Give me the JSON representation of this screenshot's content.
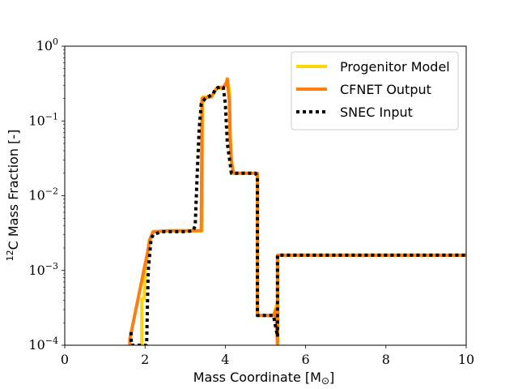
{
  "chart_data": {
    "type": "line",
    "title": "",
    "xlabel": "Mass Coordinate [M",
    "xlabel_symbol": "⊙",
    "xlabel_close": "]",
    "ylabel_sup": "12",
    "ylabel": "C Mass Fraction [-]",
    "xlim": [
      0,
      10
    ],
    "ylim": [
      0.0001,
      1
    ],
    "yscale": "log",
    "x_ticks": [
      0,
      2,
      4,
      6,
      8,
      10
    ],
    "x_tick_labels": [
      "0",
      "2",
      "4",
      "6",
      "8",
      "10"
    ],
    "y_ticks": [
      -4,
      -3,
      -2,
      -1,
      0
    ],
    "y_tick_labels": [
      "4",
      "3",
      "2",
      "1",
      "0"
    ],
    "y_tick_base": "10",
    "y_tick_minus": "−",
    "legend_position": "top-right",
    "series": [
      {
        "name": "Progenitor Model",
        "color": "#ffd700",
        "style": "solid",
        "points": [
          [
            1.92,
            0.0001
          ],
          [
            1.92,
            0.00042
          ],
          [
            1.98,
            0.00042
          ],
          [
            2.0,
            0.001
          ],
          [
            2.05,
            0.0015
          ],
          [
            2.1,
            0.0025
          ],
          [
            2.2,
            0.0033
          ],
          [
            2.6,
            0.0034
          ],
          [
            3.1,
            0.0034
          ],
          [
            3.42,
            0.0034
          ],
          [
            3.44,
            0.21
          ],
          [
            3.65,
            0.21
          ],
          [
            3.8,
            0.28
          ],
          [
            3.92,
            0.27
          ],
          [
            4.0,
            0.3
          ],
          [
            4.05,
            0.37
          ],
          [
            4.1,
            0.25
          ],
          [
            4.12,
            0.07
          ],
          [
            4.15,
            0.03
          ],
          [
            4.2,
            0.02
          ],
          [
            4.8,
            0.02
          ],
          [
            4.8,
            0.00025
          ],
          [
            5.2,
            0.00025
          ],
          [
            5.28,
            0.00035
          ],
          [
            5.3,
            0.0001
          ],
          [
            5.3,
            0.0016
          ],
          [
            10,
            0.0016
          ]
        ]
      },
      {
        "name": "CFNET Output",
        "color": "#ff7f0e",
        "style": "solid",
        "points": [
          [
            1.62,
            0.0001
          ],
          [
            1.62,
            0.00012
          ],
          [
            2.0,
            0.0012
          ],
          [
            2.05,
            0.0016
          ],
          [
            2.12,
            0.0026
          ],
          [
            2.2,
            0.0033
          ],
          [
            2.6,
            0.0034
          ],
          [
            3.1,
            0.0034
          ],
          [
            3.4,
            0.0034
          ],
          [
            3.42,
            0.2
          ],
          [
            3.65,
            0.21
          ],
          [
            3.8,
            0.28
          ],
          [
            3.95,
            0.28
          ],
          [
            4.02,
            0.32
          ],
          [
            4.05,
            0.36
          ],
          [
            4.1,
            0.18
          ],
          [
            4.12,
            0.06
          ],
          [
            4.15,
            0.03
          ],
          [
            4.2,
            0.02
          ],
          [
            4.8,
            0.02
          ],
          [
            4.8,
            0.00025
          ],
          [
            5.2,
            0.00025
          ],
          [
            5.26,
            0.0003
          ],
          [
            5.3,
            0.0001
          ],
          [
            5.3,
            0.0016
          ],
          [
            10,
            0.0016
          ]
        ]
      },
      {
        "name": "SNEC Input",
        "color": "#000000",
        "style": "dotted",
        "points": [
          [
            1.65,
            0.00015
          ],
          [
            1.66,
            0.0001
          ],
          [
            2.04,
            0.0001
          ],
          [
            2.06,
            0.00035
          ],
          [
            2.08,
            0.001
          ],
          [
            2.15,
            0.0026
          ],
          [
            2.2,
            0.003
          ],
          [
            2.4,
            0.0033
          ],
          [
            3.0,
            0.0033
          ],
          [
            3.2,
            0.0034
          ],
          [
            3.25,
            0.004
          ],
          [
            3.3,
            0.02
          ],
          [
            3.35,
            0.08
          ],
          [
            3.4,
            0.17
          ],
          [
            3.5,
            0.2
          ],
          [
            3.7,
            0.23
          ],
          [
            3.75,
            0.27
          ],
          [
            3.9,
            0.29
          ],
          [
            3.95,
            0.28
          ],
          [
            4.0,
            0.17
          ],
          [
            4.05,
            0.05
          ],
          [
            4.1,
            0.032
          ],
          [
            4.15,
            0.02
          ],
          [
            4.3,
            0.02
          ],
          [
            4.75,
            0.02
          ],
          [
            4.8,
            0.018
          ],
          [
            4.8,
            0.00025
          ],
          [
            5.2,
            0.00025
          ],
          [
            5.25,
            0.00018
          ],
          [
            5.28,
            0.00015
          ],
          [
            5.3,
            0.00013
          ],
          [
            5.3,
            0.0016
          ],
          [
            10,
            0.0016
          ]
        ]
      }
    ]
  }
}
